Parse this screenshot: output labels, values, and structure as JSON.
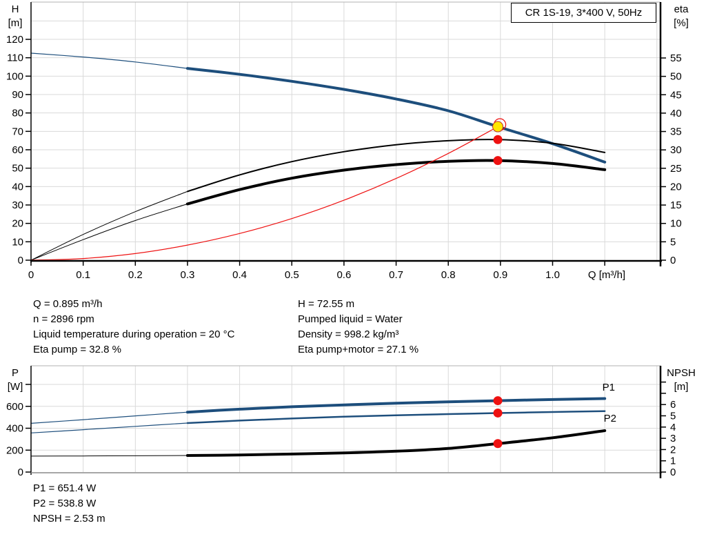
{
  "title": "CR 1S-19, 3*400 V, 50Hz",
  "colors": {
    "curve_blue": "#1d4e7c",
    "curve_black": "#000000",
    "system_red": "#ee1111",
    "dot_red": "#ee1111",
    "op_yellow": "#ffe600",
    "grid": "#d9d9d9",
    "plot_border": "#b0b0b0",
    "axis_black": "#000000",
    "bottom_axis_gray": "#888888"
  },
  "annotations": {
    "left": [
      "Q = 0.895 m³/h",
      "n = 2896 rpm",
      "Liquid temperature during operation = 20 °C",
      "Eta pump = 32.8 %"
    ],
    "right": [
      "H = 72.55 m",
      "Pumped liquid = Water",
      "Density = 998.2 kg/m³",
      "Eta pump+motor = 27.1 %"
    ],
    "bottom": [
      "P1 = 651.4 W",
      "P2 = 538.8 W",
      "NPSH = 2.53 m"
    ]
  },
  "chart_data": [
    {
      "type": "line",
      "name": "qh-eta-chart",
      "title": "CR 1S-19, 3*400 V, 50Hz",
      "x_axis_label": "Q [m³/h]",
      "left_axis_label": [
        "H",
        "[m]"
      ],
      "right_axis_label": [
        "eta",
        "[%]"
      ],
      "x_range": [
        0,
        1.207
      ],
      "left_range": [
        0,
        140
      ],
      "right_range": [
        0,
        70
      ],
      "x_tick_values": [
        0,
        0.1,
        0.2,
        0.3,
        0.4,
        0.5,
        0.6,
        0.7,
        0.8,
        0.9,
        1.0,
        1.1
      ],
      "x_tick_labels": [
        "0",
        "0.1",
        "0.2",
        "0.3",
        "0.4",
        "0.5",
        "0.6",
        "0.7",
        "0.8",
        "0.9",
        "1.0",
        ""
      ],
      "left_tick_values": [
        0,
        10,
        20,
        30,
        40,
        50,
        60,
        70,
        80,
        90,
        100,
        110,
        120
      ],
      "left_tick_labels": [
        "0",
        "10",
        "20",
        "30",
        "40",
        "50",
        "60",
        "70",
        "80",
        "90",
        "100",
        "110",
        "120"
      ],
      "right_tick_values": [
        0,
        5,
        10,
        15,
        20,
        25,
        30,
        35,
        40,
        45,
        50,
        55
      ],
      "right_tick_labels": [
        "0",
        "5",
        "10",
        "15",
        "20",
        "25",
        "30",
        "35",
        "40",
        "45",
        "50",
        "55"
      ],
      "series": [
        {
          "name": "h-curve-extension",
          "axis": "left",
          "color": "curve_blue",
          "width": 1.2,
          "points": [
            [
              0,
              112.5
            ],
            [
              0.1,
              110.4
            ],
            [
              0.2,
              107.7
            ],
            [
              0.3,
              104.2
            ]
          ]
        },
        {
          "name": "h-curve",
          "axis": "left",
          "color": "curve_blue",
          "width": 4,
          "points": [
            [
              0.3,
              104.2
            ],
            [
              0.4,
              101.0
            ],
            [
              0.5,
              97.2
            ],
            [
              0.6,
              92.8
            ],
            [
              0.7,
              87.6
            ],
            [
              0.8,
              81.2
            ],
            [
              0.895,
              72.55
            ],
            [
              1.0,
              63.3
            ],
            [
              1.1,
              53.3
            ]
          ]
        },
        {
          "name": "eta-pump-extension",
          "axis": "right",
          "color": "curve_black",
          "width": 1,
          "points": [
            [
              0,
              0
            ],
            [
              0.1,
              7.0
            ],
            [
              0.2,
              13.2
            ],
            [
              0.3,
              18.7
            ]
          ]
        },
        {
          "name": "eta-pump-curve",
          "axis": "right",
          "color": "curve_black",
          "width": 2,
          "points": [
            [
              0.3,
              18.7
            ],
            [
              0.4,
              23.2
            ],
            [
              0.5,
              26.8
            ],
            [
              0.6,
              29.5
            ],
            [
              0.7,
              31.4
            ],
            [
              0.8,
              32.5
            ],
            [
              0.895,
              32.8
            ],
            [
              1.0,
              31.8
            ],
            [
              1.1,
              29.3
            ]
          ]
        },
        {
          "name": "eta-pump-motor-extension",
          "axis": "right",
          "color": "curve_black",
          "width": 1,
          "points": [
            [
              0,
              0
            ],
            [
              0.1,
              5.6
            ],
            [
              0.2,
              10.8
            ],
            [
              0.3,
              15.3
            ]
          ]
        },
        {
          "name": "eta-pump-motor-curve",
          "axis": "right",
          "color": "curve_black",
          "width": 4,
          "points": [
            [
              0.3,
              15.3
            ],
            [
              0.4,
              19.2
            ],
            [
              0.5,
              22.3
            ],
            [
              0.6,
              24.5
            ],
            [
              0.7,
              26.0
            ],
            [
              0.8,
              26.9
            ],
            [
              0.895,
              27.1
            ],
            [
              1.0,
              26.3
            ],
            [
              1.1,
              24.6
            ]
          ]
        },
        {
          "name": "system-curve",
          "axis": "left",
          "color": "system_red",
          "width": 1.2,
          "points": [
            [
              0,
              0
            ],
            [
              0.1,
              0.9
            ],
            [
              0.2,
              3.6
            ],
            [
              0.3,
              8.2
            ],
            [
              0.4,
              14.5
            ],
            [
              0.5,
              22.6
            ],
            [
              0.6,
              32.6
            ],
            [
              0.7,
              44.4
            ],
            [
              0.8,
              58.0
            ],
            [
              0.895,
              72.55
            ]
          ]
        }
      ],
      "markers": [
        {
          "name": "duty-point",
          "q": 0.895,
          "v": 72.55,
          "axis": "left",
          "style": "op"
        },
        {
          "name": "eta-pump-point",
          "q": 0.895,
          "v": 32.8,
          "axis": "right",
          "style": "dot"
        },
        {
          "name": "eta-pump-motor-point",
          "q": 0.895,
          "v": 27.1,
          "axis": "right",
          "style": "dot"
        }
      ],
      "curve_labels": []
    },
    {
      "type": "line",
      "name": "power-npsh-chart",
      "title": "",
      "x_axis_label": "",
      "left_axis_label": [
        "P",
        "[W]"
      ],
      "right_axis_label": [
        "NPSH",
        "[m]"
      ],
      "x_range": [
        0,
        1.207
      ],
      "left_range": [
        0,
        970
      ],
      "right_range": [
        0,
        9.45
      ],
      "x_tick_values": [],
      "x_tick_labels": [],
      "left_tick_values": [
        0,
        200,
        400,
        600,
        800
      ],
      "left_tick_labels": [
        "0",
        "200",
        "400",
        "600",
        ""
      ],
      "right_tick_values": [
        0,
        1,
        2,
        3,
        4,
        5,
        6,
        7,
        8
      ],
      "right_tick_labels": [
        "0",
        "1",
        "2",
        "3",
        "4",
        "5",
        "6",
        "",
        ""
      ],
      "series": [
        {
          "name": "p1-extension",
          "axis": "left",
          "color": "curve_blue",
          "width": 1.2,
          "points": [
            [
              0,
              445
            ],
            [
              0.1,
              478
            ],
            [
              0.2,
              513
            ],
            [
              0.3,
              547
            ]
          ]
        },
        {
          "name": "p1-curve",
          "axis": "left",
          "color": "curve_blue",
          "width": 4,
          "points": [
            [
              0.3,
              547
            ],
            [
              0.4,
              574
            ],
            [
              0.5,
              596
            ],
            [
              0.6,
              613
            ],
            [
              0.7,
              628
            ],
            [
              0.8,
              641
            ],
            [
              0.895,
              651.4
            ],
            [
              1.0,
              662
            ],
            [
              1.1,
              671
            ]
          ]
        },
        {
          "name": "p2-extension",
          "axis": "left",
          "color": "curve_blue",
          "width": 1.2,
          "points": [
            [
              0,
              357
            ],
            [
              0.1,
              387
            ],
            [
              0.2,
              417
            ],
            [
              0.3,
              447
            ]
          ]
        },
        {
          "name": "p2-curve",
          "axis": "left",
          "color": "curve_blue",
          "width": 2.5,
          "points": [
            [
              0.3,
              447
            ],
            [
              0.4,
              470
            ],
            [
              0.5,
              489
            ],
            [
              0.6,
              505
            ],
            [
              0.7,
              518
            ],
            [
              0.8,
              529
            ],
            [
              0.895,
              538.8
            ],
            [
              1.0,
              548
            ],
            [
              1.1,
              556
            ]
          ]
        },
        {
          "name": "npsh-extension",
          "axis": "right",
          "color": "curve_black",
          "width": 1,
          "points": [
            [
              0,
              1.42
            ],
            [
              0.1,
              1.43
            ],
            [
              0.2,
              1.45
            ],
            [
              0.3,
              1.47
            ]
          ]
        },
        {
          "name": "npsh-curve",
          "axis": "right",
          "color": "curve_black",
          "width": 4,
          "points": [
            [
              0.3,
              1.47
            ],
            [
              0.4,
              1.52
            ],
            [
              0.5,
              1.6
            ],
            [
              0.6,
              1.7
            ],
            [
              0.7,
              1.85
            ],
            [
              0.8,
              2.1
            ],
            [
              0.895,
              2.53
            ],
            [
              1.0,
              3.05
            ],
            [
              1.1,
              3.68
            ]
          ]
        }
      ],
      "markers": [
        {
          "name": "p1-point",
          "q": 0.895,
          "v": 651.4,
          "axis": "left",
          "style": "dot"
        },
        {
          "name": "p2-point",
          "q": 0.895,
          "v": 538.8,
          "axis": "left",
          "style": "dot"
        },
        {
          "name": "npsh-point",
          "q": 0.895,
          "v": 2.53,
          "axis": "right",
          "style": "dot"
        }
      ],
      "curve_labels": [
        {
          "text": "P1",
          "x": 892,
          "y": 566
        },
        {
          "text": "P2",
          "x": 894,
          "y": 611
        }
      ]
    }
  ]
}
